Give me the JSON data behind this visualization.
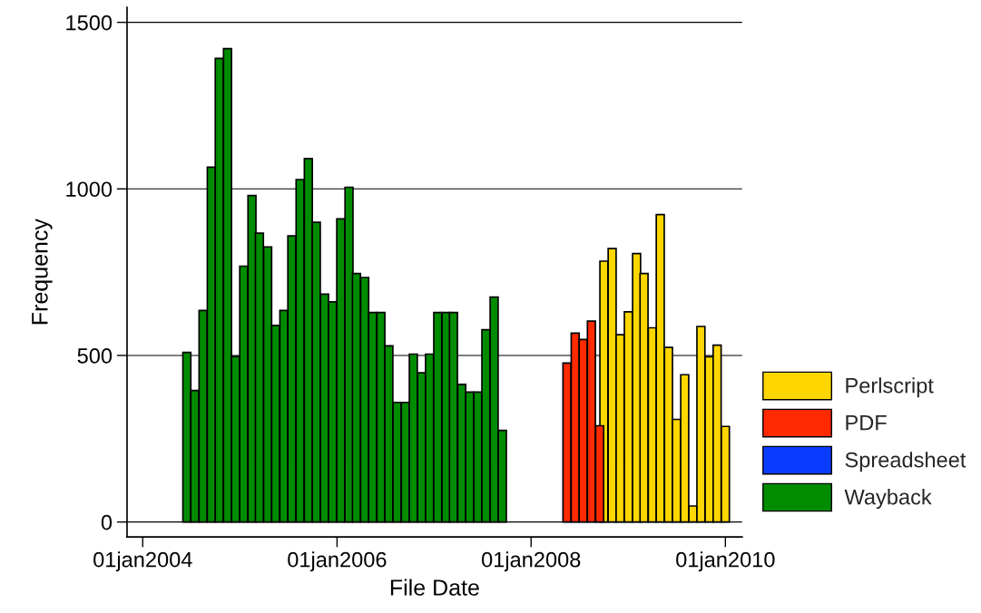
{
  "chart_data": {
    "type": "bar",
    "xlabel": "File Date",
    "ylabel": "Frequency",
    "xlim": [
      "2003-11-03",
      "2010-03-05"
    ],
    "ylim": [
      -45,
      1545
    ],
    "xticks": [
      {
        "value": "2004-01-01",
        "label": "01jan2004"
      },
      {
        "value": "2006-01-01",
        "label": "01jan2006"
      },
      {
        "value": "2008-01-01",
        "label": "01jan2008"
      },
      {
        "value": "2010-01-01",
        "label": "01jan2010"
      }
    ],
    "yticks": [
      0,
      500,
      1000,
      1500
    ],
    "grid": "y",
    "legend": "right",
    "series": [
      {
        "name": "Perlscript",
        "color": "#ffd700",
        "x": [
          "2008-10-01",
          "2008-11-01",
          "2008-12-01",
          "2009-01-01",
          "2009-02-01",
          "2009-03-01",
          "2009-04-01",
          "2009-05-01",
          "2009-06-01",
          "2009-07-01",
          "2009-08-01",
          "2009-09-01",
          "2009-10-01",
          "2009-11-01",
          "2009-12-01",
          "2010-01-01"
        ],
        "values": [
          783,
          821,
          562,
          631,
          806,
          746,
          583,
          923,
          524,
          308,
          442,
          48,
          587,
          496,
          531,
          287
        ]
      },
      {
        "name": "PDF",
        "color": "#ff2a00",
        "x": [
          "2008-05-15",
          "2008-06-15",
          "2008-07-15",
          "2008-08-15",
          "2008-09-15"
        ],
        "values": [
          477,
          567,
          548,
          603,
          289
        ]
      },
      {
        "name": "Spreadsheet",
        "color": "#0a3cff"
      },
      {
        "name": "Wayback",
        "color": "#008c00",
        "x": [
          "2004-06-15",
          "2004-07-15",
          "2004-08-15",
          "2004-09-15",
          "2004-10-15",
          "2004-11-15",
          "2004-12-15",
          "2005-01-15",
          "2005-02-15",
          "2005-03-15",
          "2005-04-15",
          "2005-05-15",
          "2005-06-15",
          "2005-07-15",
          "2005-08-15",
          "2005-09-15",
          "2005-10-15",
          "2005-11-15",
          "2005-12-15",
          "2006-01-15",
          "2006-02-15",
          "2006-03-15",
          "2006-04-15",
          "2006-05-15",
          "2006-06-15",
          "2006-07-15",
          "2006-08-15",
          "2006-09-15",
          "2006-10-15",
          "2006-11-15",
          "2006-12-15",
          "2007-01-15",
          "2007-02-15",
          "2007-03-15",
          "2007-04-15",
          "2007-05-15",
          "2007-06-15",
          "2007-07-15",
          "2007-08-15",
          "2007-09-15"
        ],
        "values": [
          509,
          395,
          635,
          1065,
          1392,
          1421,
          497,
          768,
          980,
          867,
          826,
          590,
          635,
          859,
          1028,
          1091,
          900,
          684,
          661,
          910,
          1005,
          746,
          734,
          629,
          629,
          529,
          359,
          359,
          504,
          448,
          504,
          629,
          629,
          629,
          413,
          390,
          390,
          577,
          675,
          275
        ]
      }
    ]
  }
}
